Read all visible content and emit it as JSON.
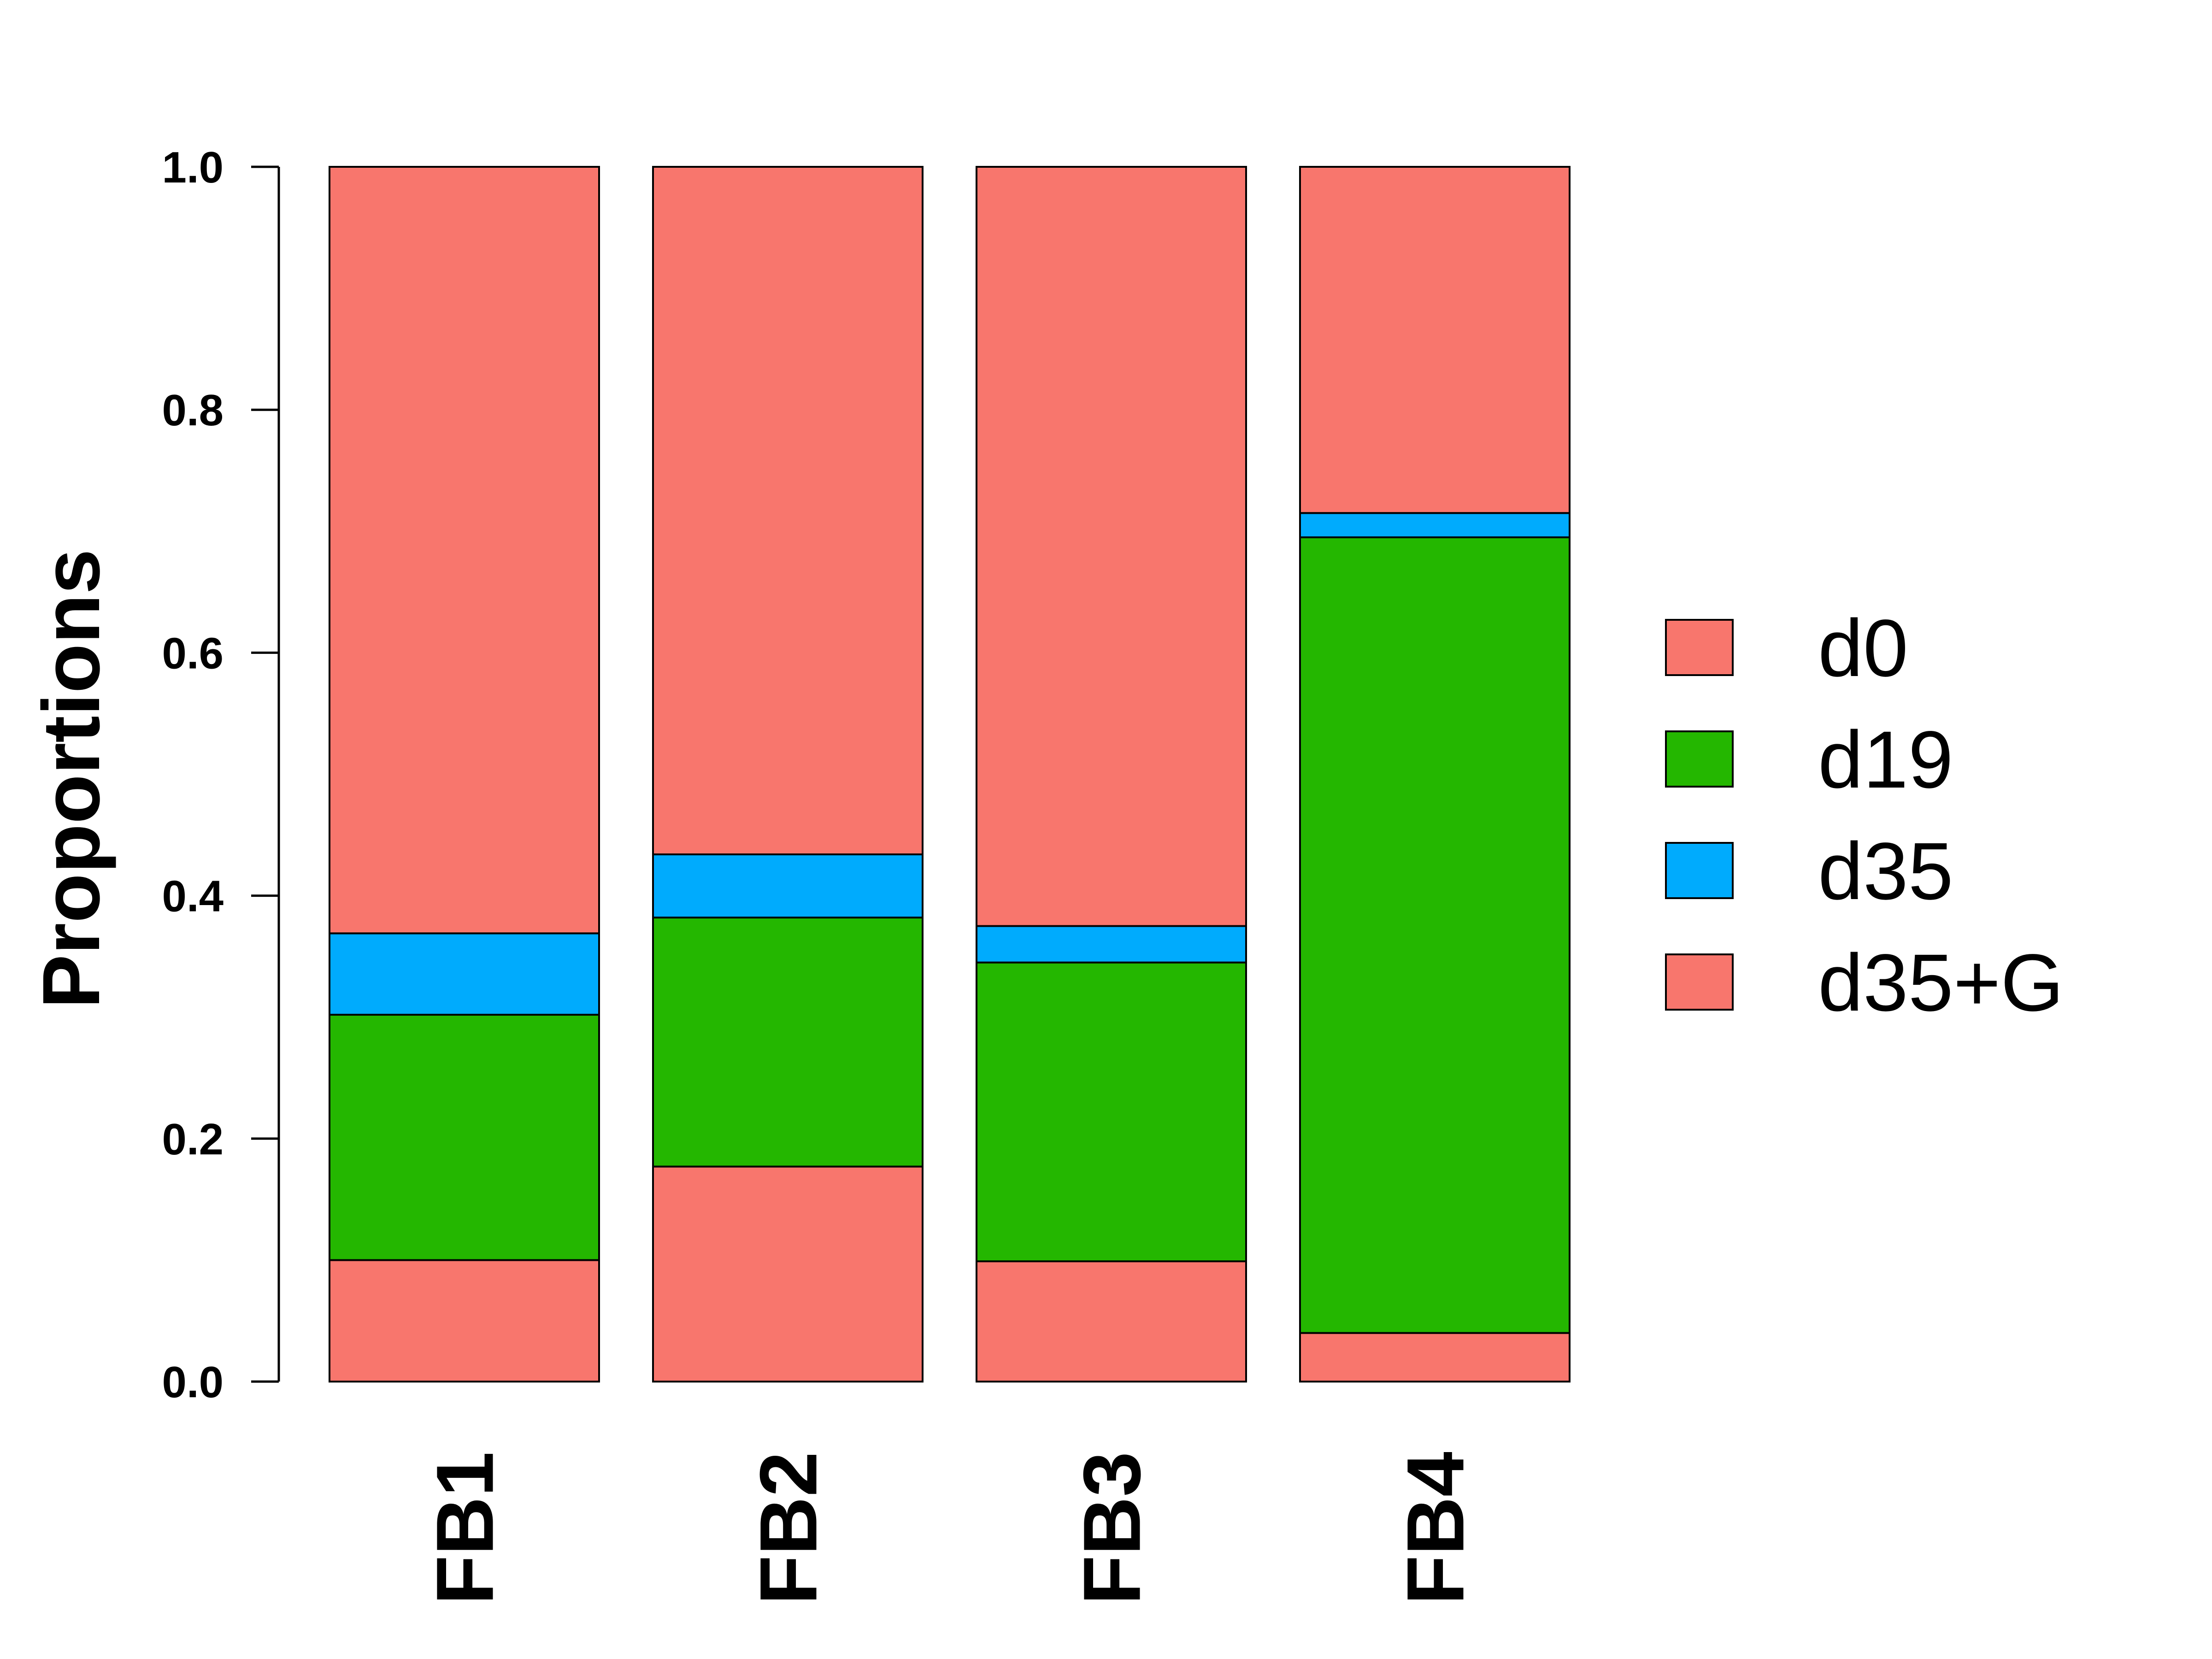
{
  "chart_data": {
    "type": "bar",
    "stacked": true,
    "categories": [
      "FB1",
      "FB2",
      "FB3",
      "FB4"
    ],
    "ylabel": "Proportions",
    "xlabel": "",
    "ylim": [
      0,
      1.0
    ],
    "yticks": [
      "0.0",
      "0.2",
      "0.4",
      "0.6",
      "0.8",
      "1.0"
    ],
    "grid": false,
    "legend_position": "right",
    "series": [
      {
        "name": "d35+G",
        "color": "#F8766D",
        "values": [
          0.1,
          0.177,
          0.099,
          0.04
        ]
      },
      {
        "name": "d19",
        "color": "#24B700",
        "values": [
          0.202,
          0.205,
          0.246,
          0.655
        ]
      },
      {
        "name": "d35",
        "color": "#00ABFD",
        "values": [
          0.067,
          0.052,
          0.03,
          0.02
        ]
      },
      {
        "name": "d0",
        "color": "#F8766D",
        "values": [
          0.631,
          0.566,
          0.625,
          0.285
        ]
      }
    ],
    "legend_order": [
      "d0",
      "d19",
      "d35",
      "d35+G"
    ]
  }
}
